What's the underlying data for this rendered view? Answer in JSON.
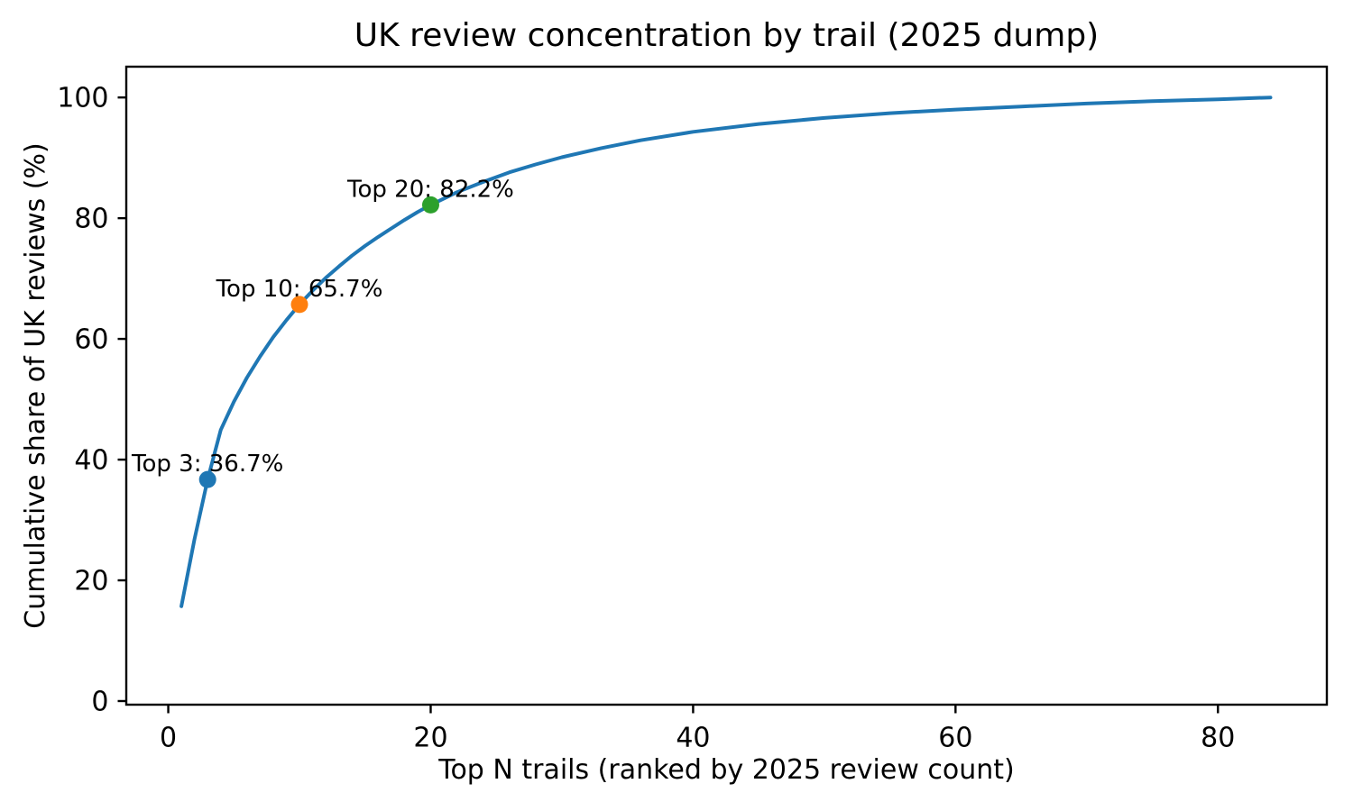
{
  "title": "UK review concentration by trail (2025 dump)",
  "chart_data": {
    "type": "line",
    "title": "UK review concentration by trail (2025 dump)",
    "xlabel": "Top N trails (ranked by 2025 review count)",
    "ylabel": "Cumulative share of UK reviews (%)",
    "xlim": [
      -3.2,
      88.3
    ],
    "ylim": [
      -0.6,
      105.1
    ],
    "xticks": [
      0,
      20,
      40,
      60,
      80
    ],
    "yticks": [
      0,
      20,
      40,
      60,
      80,
      100
    ],
    "grid": false,
    "legend": null,
    "line_color": "#1f77b4",
    "line_width": 4,
    "x": [
      1,
      2,
      3,
      4,
      5,
      6,
      7,
      8,
      9,
      10,
      11,
      12,
      13,
      14,
      15,
      16,
      17,
      18,
      19,
      20,
      22,
      24,
      26,
      28,
      30,
      33,
      36,
      40,
      45,
      50,
      55,
      60,
      65,
      70,
      75,
      80,
      84
    ],
    "y": [
      15.7,
      26.8,
      36.7,
      44.9,
      49.6,
      53.6,
      57.1,
      60.3,
      63.1,
      65.7,
      68.0,
      70.1,
      72.0,
      73.8,
      75.4,
      76.9,
      78.3,
      79.7,
      81.0,
      82.2,
      84.3,
      86.0,
      87.6,
      88.9,
      90.1,
      91.6,
      92.9,
      94.3,
      95.6,
      96.6,
      97.4,
      98.0,
      98.5,
      99.0,
      99.4,
      99.7,
      100.0
    ],
    "annotations": [
      {
        "x": 3,
        "y": 36.7,
        "label": "Top 3: 36.7%",
        "marker_color": "#1f77b4"
      },
      {
        "x": 10,
        "y": 65.7,
        "label": "Top 10: 65.7%",
        "marker_color": "#ff7f0e"
      },
      {
        "x": 20,
        "y": 82.2,
        "label": "Top 20: 82.2%",
        "marker_color": "#2ca02c"
      }
    ],
    "axis_color": "#000000"
  }
}
